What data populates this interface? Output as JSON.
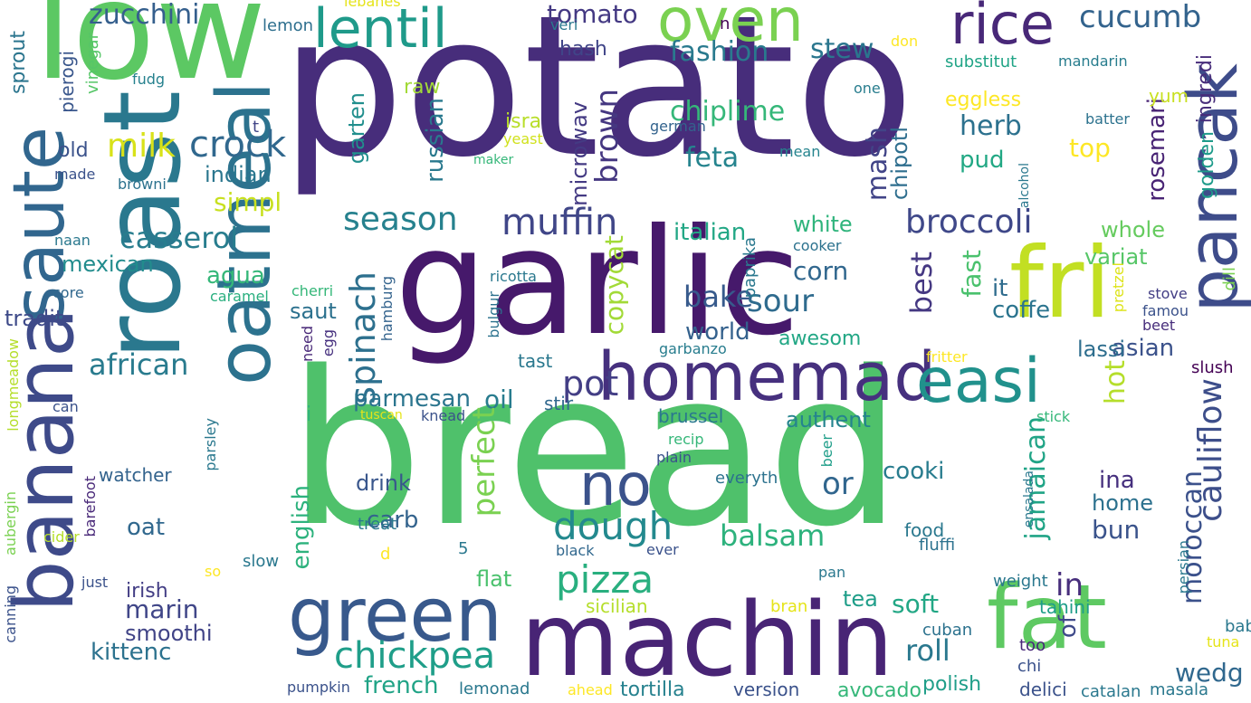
{
  "words": [
    {
      "text": "bread",
      "color": "#4fc16b",
      "vertical": false
    },
    {
      "text": "potato",
      "color": "#472d7b",
      "vertical": false
    },
    {
      "text": "garlic",
      "color": "#46196b",
      "vertical": false
    },
    {
      "text": "low",
      "color": "#5cc863",
      "vertical": false
    },
    {
      "text": "roast",
      "color": "#2a788e",
      "vertical": true
    },
    {
      "text": "oatmeal",
      "color": "#2c728e",
      "vertical": true
    },
    {
      "text": "banana",
      "color": "#3e4a89",
      "vertical": true
    },
    {
      "text": "saute",
      "color": "#31668e",
      "vertical": true
    },
    {
      "text": "machin",
      "color": "#482475",
      "vertical": false
    },
    {
      "text": "fat",
      "color": "#5ec962",
      "vertical": false
    },
    {
      "text": "fri",
      "color": "#c2df23",
      "vertical": false
    },
    {
      "text": "pancak",
      "color": "#3e4c8a",
      "vertical": true
    },
    {
      "text": "homemad",
      "color": "#46307e",
      "vertical": false
    },
    {
      "text": "green",
      "color": "#38598c",
      "vertical": false
    },
    {
      "text": "easi",
      "color": "#21918c",
      "vertical": false
    },
    {
      "text": "oven",
      "color": "#7ad151",
      "vertical": false
    },
    {
      "text": "lentil",
      "color": "#1f9a8a",
      "vertical": false
    },
    {
      "text": "rice",
      "color": "#482878",
      "vertical": false
    },
    {
      "text": "no",
      "color": "#3b528b",
      "vertical": false
    },
    {
      "text": "pizza",
      "color": "#29af7f",
      "vertical": false
    },
    {
      "text": "dough",
      "color": "#23898e",
      "vertical": false
    },
    {
      "text": "muffin",
      "color": "#404688",
      "vertical": false
    },
    {
      "text": "broccoli",
      "color": "#3f4889",
      "vertical": false
    },
    {
      "text": "season",
      "color": "#26818e",
      "vertical": false
    },
    {
      "text": "chickpea",
      "color": "#1f9e89",
      "vertical": false
    },
    {
      "text": "casserol",
      "color": "#287d8e",
      "vertical": false
    },
    {
      "text": "crock",
      "color": "#31688e",
      "vertical": false
    },
    {
      "text": "milk",
      "color": "#d8e219",
      "vertical": false
    },
    {
      "text": "zucchini",
      "color": "#355f8d",
      "vertical": false
    },
    {
      "text": "cucumb",
      "color": "#33638d",
      "vertical": false
    },
    {
      "text": "tomato",
      "color": "#443983",
      "vertical": false
    },
    {
      "text": "fashion",
      "color": "#297a8e",
      "vertical": false
    },
    {
      "text": "stew",
      "color": "#2a768e",
      "vertical": false
    },
    {
      "text": "chiplime",
      "color": "#35b779",
      "vertical": false
    },
    {
      "text": "feta",
      "color": "#25848e",
      "vertical": false
    },
    {
      "text": "herb",
      "color": "#2c718e",
      "vertical": false
    },
    {
      "text": "pud",
      "color": "#22a884",
      "vertical": false
    },
    {
      "text": "top",
      "color": "#fde725",
      "vertical": false
    },
    {
      "text": "bake",
      "color": "#375a8c",
      "vertical": false
    },
    {
      "text": "sour",
      "color": "#2f6b8e",
      "vertical": false
    },
    {
      "text": "pot",
      "color": "#433e85",
      "vertical": false
    },
    {
      "text": "oil",
      "color": "#287c8e",
      "vertical": false
    },
    {
      "text": "cauliflow",
      "color": "#3d4e8a",
      "vertical": true
    },
    {
      "text": "spinach",
      "color": "#2d708e",
      "vertical": true
    },
    {
      "text": "brown",
      "color": "#453781",
      "vertical": true
    },
    {
      "text": "microwav",
      "color": "#443a83",
      "vertical": true
    },
    {
      "text": "russian",
      "color": "#29798e",
      "vertical": true
    },
    {
      "text": "garten",
      "color": "#218f8d",
      "vertical": true
    },
    {
      "text": "perfect",
      "color": "#7ad151",
      "vertical": true
    },
    {
      "text": "copycat",
      "color": "#a2da37",
      "vertical": true
    },
    {
      "text": "mash",
      "color": "#414487",
      "vertical": true
    },
    {
      "text": "chipotl",
      "color": "#2e6e8e",
      "vertical": true
    },
    {
      "text": "best",
      "color": "#453882",
      "vertical": true
    },
    {
      "text": "fast",
      "color": "#4ac16d",
      "vertical": true
    },
    {
      "text": "rosemari",
      "color": "#482374",
      "vertical": true
    },
    {
      "text": "golden",
      "color": "#1e9b8a",
      "vertical": true
    },
    {
      "text": "ingredi",
      "color": "#472c7a",
      "vertical": true
    },
    {
      "text": "hot",
      "color": "#b5de2b",
      "vertical": true
    },
    {
      "text": "jamaican",
      "color": "#20a486",
      "vertical": true
    },
    {
      "text": "moroccan",
      "color": "#3b518b",
      "vertical": true
    },
    {
      "text": "of",
      "color": "#3e4989",
      "vertical": true
    },
    {
      "text": "english",
      "color": "#2db27d",
      "vertical": true
    },
    {
      "text": "african",
      "color": "#297b8e",
      "vertical": false
    },
    {
      "text": "mexican",
      "color": "#228c8d",
      "vertical": false
    },
    {
      "text": "tradit",
      "color": "#3e4a89",
      "vertical": false
    },
    {
      "text": "indian",
      "color": "#2a768e",
      "vertical": false
    },
    {
      "text": "simpl",
      "color": "#c8e020",
      "vertical": false
    },
    {
      "text": "agua",
      "color": "#35b779",
      "vertical": false
    },
    {
      "text": "italian",
      "color": "#22a785",
      "vertical": false
    },
    {
      "text": "white",
      "color": "#2fb47c",
      "vertical": false
    },
    {
      "text": "whole",
      "color": "#65cb5e",
      "vertical": false
    },
    {
      "text": "variat",
      "color": "#56c667",
      "vertical": false
    },
    {
      "text": "corn",
      "color": "#31678e",
      "vertical": false
    },
    {
      "text": "it",
      "color": "#2f6c8e",
      "vertical": false
    },
    {
      "text": "coffe",
      "color": "#2b748e",
      "vertical": false
    },
    {
      "text": "world",
      "color": "#34618d",
      "vertical": false
    },
    {
      "text": "asian",
      "color": "#3b528b",
      "vertical": false
    },
    {
      "text": "lassi",
      "color": "#2e6e8e",
      "vertical": false
    },
    {
      "text": "parmesan",
      "color": "#2b758e",
      "vertical": false
    },
    {
      "text": "authent",
      "color": "#25848e",
      "vertical": false
    },
    {
      "text": "or",
      "color": "#31668e",
      "vertical": false
    },
    {
      "text": "in",
      "color": "#472e7c",
      "vertical": false
    },
    {
      "text": "ina",
      "color": "#46307e",
      "vertical": false
    },
    {
      "text": "home",
      "color": "#2c718e",
      "vertical": false
    },
    {
      "text": "bun",
      "color": "#3a538b",
      "vertical": false
    },
    {
      "text": "cooki",
      "color": "#287c8e",
      "vertical": false
    },
    {
      "text": "carb",
      "color": "#33638d",
      "vertical": false
    },
    {
      "text": "drink",
      "color": "#39568c",
      "vertical": false
    },
    {
      "text": "oat",
      "color": "#31688e",
      "vertical": false
    },
    {
      "text": "balsam",
      "color": "#2db27d",
      "vertical": false
    },
    {
      "text": "flat",
      "color": "#4ac16d",
      "vertical": false
    },
    {
      "text": "irish",
      "color": "#433e85",
      "vertical": false
    },
    {
      "text": "marin",
      "color": "#404688",
      "vertical": false
    },
    {
      "text": "smoothi",
      "color": "#414487",
      "vertical": false
    },
    {
      "text": "kittenc",
      "color": "#2c728e",
      "vertical": false
    },
    {
      "text": "french",
      "color": "#20a386",
      "vertical": false
    },
    {
      "text": "roll",
      "color": "#2a788e",
      "vertical": false
    },
    {
      "text": "soft",
      "color": "#22a785",
      "vertical": false
    },
    {
      "text": "tea",
      "color": "#1f9e89",
      "vertical": false
    },
    {
      "text": "wedg",
      "color": "#30688e",
      "vertical": false
    },
    {
      "text": "watcher",
      "color": "#33638d",
      "vertical": false
    },
    {
      "text": "saut",
      "color": "#2c718e",
      "vertical": false
    },
    {
      "text": "raw",
      "color": "#a2da37",
      "vertical": false
    },
    {
      "text": "hash",
      "color": "#404588",
      "vertical": false
    },
    {
      "text": "old",
      "color": "#3b528b",
      "vertical": false
    },
    {
      "text": "isra",
      "color": "#b8de29",
      "vertical": false
    },
    {
      "text": "yeast",
      "color": "#d0e11c",
      "vertical": false
    },
    {
      "text": "eggless",
      "color": "#fde725",
      "vertical": false
    },
    {
      "text": "substitut",
      "color": "#20a486",
      "vertical": false
    },
    {
      "text": "mandarin",
      "color": "#287d8e",
      "vertical": false
    },
    {
      "text": "yum",
      "color": "#c8e020",
      "vertical": false
    },
    {
      "text": "lemon",
      "color": "#2e6f8e",
      "vertical": false
    },
    {
      "text": "lebanes",
      "color": "#e5e419",
      "vertical": false
    },
    {
      "text": "fudg",
      "color": "#26818e",
      "vertical": false
    },
    {
      "text": "sprout",
      "color": "#2b758e",
      "vertical": true
    },
    {
      "text": "pierogi",
      "color": "#39568c",
      "vertical": true
    },
    {
      "text": "vinegar",
      "color": "#56c667",
      "vertical": true
    },
    {
      "text": "veri",
      "color": "#2a788e",
      "vertical": false
    },
    {
      "text": "n",
      "color": "#440154",
      "vertical": false
    },
    {
      "text": "don",
      "color": "#fde725",
      "vertical": false
    },
    {
      "text": "one",
      "color": "#287d8e",
      "vertical": false
    },
    {
      "text": "batter",
      "color": "#2c728e",
      "vertical": false
    },
    {
      "text": "german",
      "color": "#33638d",
      "vertical": false
    },
    {
      "text": "mean",
      "color": "#25848e",
      "vertical": false
    },
    {
      "text": "maker",
      "color": "#35b779",
      "vertical": false
    },
    {
      "text": "t",
      "color": "#414487",
      "vertical": false
    },
    {
      "text": "made",
      "color": "#3b528b",
      "vertical": false
    },
    {
      "text": "browni",
      "color": "#2c728e",
      "vertical": false
    },
    {
      "text": "naan",
      "color": "#2a788e",
      "vertical": false
    },
    {
      "text": "core",
      "color": "#31688e",
      "vertical": false
    },
    {
      "text": "caramel",
      "color": "#29af7f",
      "vertical": false
    },
    {
      "text": "cherri",
      "color": "#35b779",
      "vertical": false
    },
    {
      "text": "ricotta",
      "color": "#2a788e",
      "vertical": false
    },
    {
      "text": "cooker",
      "color": "#2c728e",
      "vertical": false
    },
    {
      "text": "stove",
      "color": "#433e85",
      "vertical": false
    },
    {
      "text": "famou",
      "color": "#3b528b",
      "vertical": false
    },
    {
      "text": "beet",
      "color": "#472d7b",
      "vertical": false
    },
    {
      "text": "dill",
      "color": "#7ad151",
      "vertical": true
    },
    {
      "text": "alcohol",
      "color": "#2a788e",
      "vertical": true
    },
    {
      "text": "paprika",
      "color": "#2a788e",
      "vertical": true
    },
    {
      "text": "hamburg",
      "color": "#33638d",
      "vertical": true
    },
    {
      "text": "bulgur",
      "color": "#2c728e",
      "vertical": true
    },
    {
      "text": "egg",
      "color": "#46307e",
      "vertical": true
    },
    {
      "text": "need",
      "color": "#482878",
      "vertical": true
    },
    {
      "text": "pretzel",
      "color": "#dde318",
      "vertical": true
    },
    {
      "text": "awesom",
      "color": "#22a785",
      "vertical": false
    },
    {
      "text": "garbanzo",
      "color": "#287d8e",
      "vertical": false
    },
    {
      "text": "tast",
      "color": "#2a788e",
      "vertical": false
    },
    {
      "text": "stir",
      "color": "#31688e",
      "vertical": false
    },
    {
      "text": "knead",
      "color": "#3b528b",
      "vertical": false
    },
    {
      "text": "tuscan",
      "color": "#e5e419",
      "vertical": false
    },
    {
      "text": "can",
      "color": "#3b528b",
      "vertical": false
    },
    {
      "text": "i",
      "color": "#2fb47c",
      "vertical": false
    },
    {
      "text": "brussel",
      "color": "#2a788e",
      "vertical": false
    },
    {
      "text": "recip",
      "color": "#35b779",
      "vertical": false
    },
    {
      "text": "plain",
      "color": "#3b528b",
      "vertical": false
    },
    {
      "text": "fritter",
      "color": "#fde725",
      "vertical": false
    },
    {
      "text": "slush",
      "color": "#440154",
      "vertical": false
    },
    {
      "text": "stick",
      "color": "#35b779",
      "vertical": false
    },
    {
      "text": "beer",
      "color": "#1f9e89",
      "vertical": true
    },
    {
      "text": "ensalada",
      "color": "#2a788e",
      "vertical": true
    },
    {
      "text": "everyth",
      "color": "#2c728e",
      "vertical": false
    },
    {
      "text": "treat",
      "color": "#2a788e",
      "vertical": false
    },
    {
      "text": "cider",
      "color": "#b5de2b",
      "vertical": false
    },
    {
      "text": "slow",
      "color": "#2a788e",
      "vertical": false
    },
    {
      "text": "d",
      "color": "#fde725",
      "vertical": false
    },
    {
      "text": "5",
      "color": "#2a788e",
      "vertical": false
    },
    {
      "text": "black",
      "color": "#31688e",
      "vertical": false
    },
    {
      "text": "ever",
      "color": "#3b528b",
      "vertical": false
    },
    {
      "text": "food",
      "color": "#2a788e",
      "vertical": false
    },
    {
      "text": "fluffi",
      "color": "#2c728e",
      "vertical": false
    },
    {
      "text": "pan",
      "color": "#2a788e",
      "vertical": false
    },
    {
      "text": "weight",
      "color": "#2a788e",
      "vertical": false
    },
    {
      "text": "persian",
      "color": "#2a788e",
      "vertical": true
    },
    {
      "text": "sicilian",
      "color": "#b5de2b",
      "vertical": false
    },
    {
      "text": "bran",
      "color": "#e5e419",
      "vertical": false
    },
    {
      "text": "tahini",
      "color": "#1f9e89",
      "vertical": false
    },
    {
      "text": "babi",
      "color": "#2a788e",
      "vertical": false
    },
    {
      "text": "tuna",
      "color": "#e5e419",
      "vertical": false
    },
    {
      "text": "cuban",
      "color": "#2c728e",
      "vertical": false
    },
    {
      "text": "too",
      "color": "#482878",
      "vertical": false
    },
    {
      "text": "chi",
      "color": "#3b528b",
      "vertical": false
    },
    {
      "text": "pumpkin",
      "color": "#3b528b",
      "vertical": false
    },
    {
      "text": "lemonad",
      "color": "#2a788e",
      "vertical": false
    },
    {
      "text": "ahead",
      "color": "#fde725",
      "vertical": false
    },
    {
      "text": "tortilla",
      "color": "#26818e",
      "vertical": false
    },
    {
      "text": "version",
      "color": "#3b528b",
      "vertical": false
    },
    {
      "text": "avocado",
      "color": "#35b779",
      "vertical": false
    },
    {
      "text": "polish",
      "color": "#1f9e89",
      "vertical": false
    },
    {
      "text": "catalan",
      "color": "#2a788e",
      "vertical": false
    },
    {
      "text": "masala",
      "color": "#2a788e",
      "vertical": false
    },
    {
      "text": "delici",
      "color": "#3b528b",
      "vertical": false
    },
    {
      "text": "just",
      "color": "#3b528b",
      "vertical": false
    },
    {
      "text": "so",
      "color": "#fde725",
      "vertical": false
    },
    {
      "text": "longmeadow",
      "color": "#b5de2b",
      "vertical": true
    },
    {
      "text": "aubergin",
      "color": "#7ad151",
      "vertical": true
    },
    {
      "text": "canning",
      "color": "#3b528b",
      "vertical": true
    },
    {
      "text": "barefoot",
      "color": "#482878",
      "vertical": true
    },
    {
      "text": "parsley",
      "color": "#2a788e",
      "vertical": true
    }
  ]
}
